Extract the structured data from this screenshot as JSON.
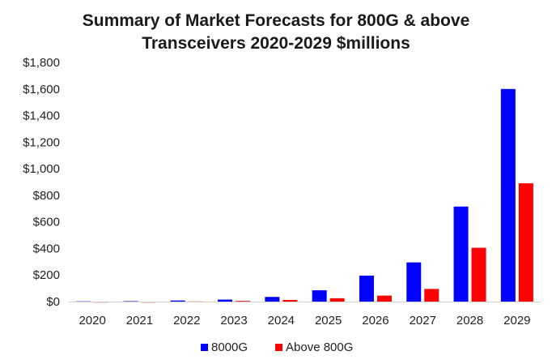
{
  "chart_data": {
    "type": "bar",
    "title_lines": [
      "Summary of Market Forecasts for 800G & above",
      "Transceivers 2020-2029 $millions"
    ],
    "categories": [
      "2020",
      "2021",
      "2022",
      "2023",
      "2024",
      "2025",
      "2026",
      "2027",
      "2028",
      "2029"
    ],
    "series": [
      {
        "name": "8000G",
        "color": "#0000ff",
        "values": [
          2,
          3,
          8,
          15,
          35,
          85,
          195,
          295,
          715,
          1600
        ]
      },
      {
        "name": "Above 800G",
        "color": "#ff0000",
        "values": [
          0,
          0,
          1,
          5,
          12,
          25,
          45,
          95,
          405,
          890
        ]
      }
    ],
    "ylim": [
      0,
      1800
    ],
    "yticks": [
      "$0",
      "$200",
      "$400",
      "$600",
      "$800",
      "$1,000",
      "$1,200",
      "$1,400",
      "$1,600",
      "$1,800"
    ],
    "grid": false,
    "legend_position": "bottom"
  }
}
